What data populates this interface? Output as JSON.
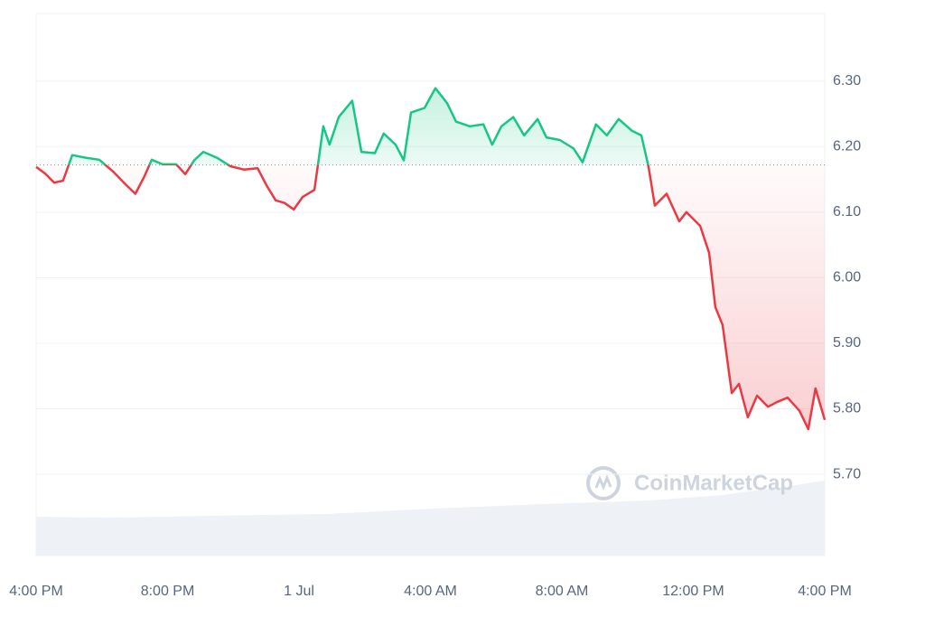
{
  "chart_data": {
    "type": "line",
    "x": [
      0,
      0.27,
      0.55,
      0.82,
      1.1,
      1.51,
      1.92,
      2.34,
      2.75,
      3.02,
      3.3,
      3.52,
      3.85,
      4.26,
      4.54,
      4.81,
      5.09,
      5.5,
      5.91,
      6.32,
      6.74,
      7.01,
      7.29,
      7.56,
      7.84,
      8.11,
      8.47,
      8.74,
      8.93,
      9.21,
      9.62,
      9.9,
      10.31,
      10.58,
      10.94,
      11.19,
      11.41,
      11.82,
      12.15,
      12.51,
      12.78,
      13.2,
      13.61,
      13.88,
      14.16,
      14.52,
      14.85,
      15.26,
      15.53,
      15.94,
      16.36,
      16.63,
      17.04,
      17.37,
      17.73,
      18.14,
      18.42,
      18.64,
      18.83,
      19.19,
      19.57,
      19.79,
      20.21,
      20.48,
      20.67,
      20.89,
      21.17,
      21.39,
      21.66,
      21.94,
      22.27,
      22.54,
      22.87,
      23.23,
      23.5,
      23.72,
      24
    ],
    "values": [
      6.169,
      6.159,
      6.145,
      6.148,
      6.187,
      6.183,
      6.18,
      6.162,
      6.141,
      6.128,
      6.155,
      6.18,
      6.173,
      6.173,
      6.158,
      6.179,
      6.192,
      6.183,
      6.17,
      6.165,
      6.167,
      6.141,
      6.118,
      6.114,
      6.104,
      6.123,
      6.134,
      6.231,
      6.203,
      6.245,
      6.27,
      6.192,
      6.19,
      6.22,
      6.203,
      6.179,
      6.252,
      6.259,
      6.289,
      6.266,
      6.238,
      6.231,
      6.234,
      6.203,
      6.231,
      6.245,
      6.217,
      6.242,
      6.214,
      6.21,
      6.197,
      6.176,
      6.234,
      6.217,
      6.242,
      6.224,
      6.217,
      6.169,
      6.11,
      6.128,
      6.086,
      6.1,
      6.079,
      6.038,
      5.955,
      5.928,
      5.824,
      5.838,
      5.787,
      5.82,
      5.803,
      5.81,
      5.817,
      5.797,
      5.769,
      5.831,
      5.783
    ],
    "baseline": 6.172,
    "up_color": "#16c784",
    "down_color": "#ea3943",
    "xlim": [
      0,
      24
    ],
    "xticks": [
      {
        "value": 0,
        "label": "4:00 PM"
      },
      {
        "value": 4,
        "label": "8:00 PM"
      },
      {
        "value": 8,
        "label": "1 Jul"
      },
      {
        "value": 12,
        "label": "4:00 AM"
      },
      {
        "value": 16,
        "label": "8:00 AM"
      },
      {
        "value": 20,
        "label": "12:00 PM"
      },
      {
        "value": 24,
        "label": "4:00 PM"
      }
    ],
    "ylim": [
      5.576,
      6.403
    ],
    "yticks": [
      {
        "value": 5.7,
        "label": "5.70"
      },
      {
        "value": 5.8,
        "label": "5.80"
      },
      {
        "value": 5.9,
        "label": "5.90"
      },
      {
        "value": 6.0,
        "label": "6.00"
      },
      {
        "value": 6.1,
        "label": "6.10"
      },
      {
        "value": 6.2,
        "label": "6.20"
      },
      {
        "value": 6.3,
        "label": "6.30"
      }
    ],
    "grid": true,
    "watermark": "CoinMarketCap"
  }
}
